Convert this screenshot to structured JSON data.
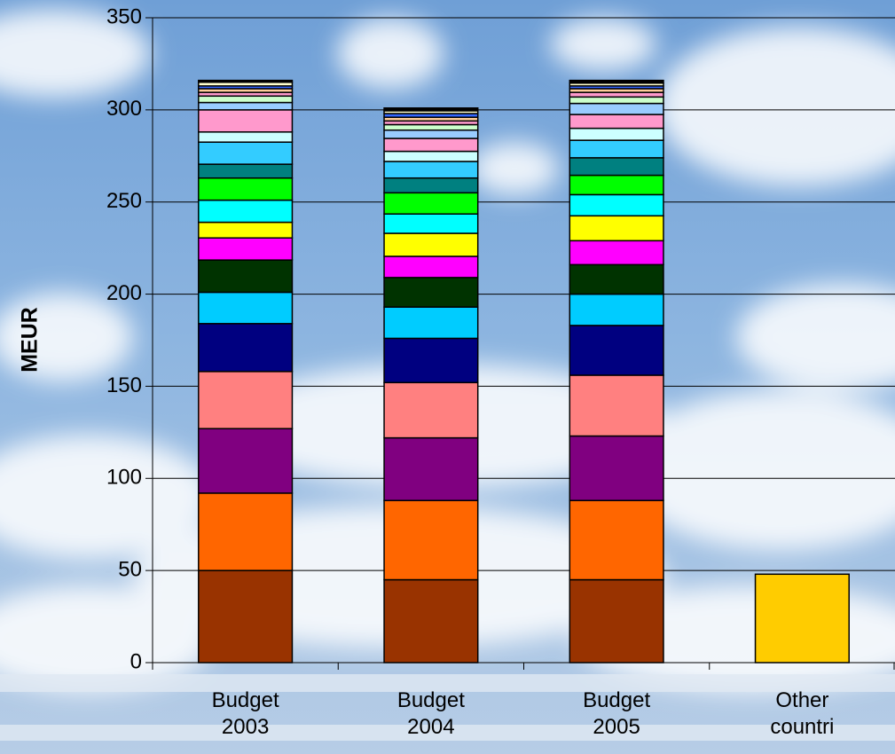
{
  "chart_data": {
    "type": "stacked_bar",
    "y_label": "MEUR",
    "categories": [
      "Budget 2003",
      "Budget 2004",
      "Budget 2005",
      "Other countri"
    ],
    "ylim": [
      0,
      350
    ],
    "yticks": [
      0,
      50,
      100,
      150,
      200,
      250,
      300,
      350
    ],
    "grid": true,
    "series": [
      {
        "color": "#993300",
        "values": [
          50,
          45,
          45,
          null
        ]
      },
      {
        "color": "#ff6600",
        "values": [
          42,
          43,
          43,
          null
        ]
      },
      {
        "color": "#800080",
        "values": [
          35,
          34,
          35,
          null
        ]
      },
      {
        "color": "#ff8080",
        "values": [
          31,
          30,
          33,
          null
        ]
      },
      {
        "color": "#000080",
        "values": [
          26,
          24,
          27,
          null
        ]
      },
      {
        "color": "#00ccff",
        "values": [
          17,
          17,
          17,
          null
        ]
      },
      {
        "color": "#003300",
        "values": [
          17.5,
          16,
          16,
          null
        ]
      },
      {
        "color": "#ff00ff",
        "values": [
          12,
          11.5,
          13,
          null
        ]
      },
      {
        "color": "#ffff00",
        "values": [
          8.5,
          12.5,
          13.5,
          null
        ]
      },
      {
        "color": "#00ffff",
        "values": [
          12,
          10.5,
          11.5,
          null
        ]
      },
      {
        "color": "#00ff00",
        "values": [
          12,
          11.5,
          10.5,
          null
        ]
      },
      {
        "color": "#008080",
        "values": [
          7.5,
          8,
          9.5,
          null
        ]
      },
      {
        "color": "#33ccff",
        "values": [
          12,
          9,
          9.5,
          null
        ]
      },
      {
        "color": "#ccffff",
        "values": [
          5.5,
          5.5,
          6.5,
          null
        ]
      },
      {
        "color": "#ff99cc",
        "values": [
          12,
          7,
          7.5,
          null
        ]
      },
      {
        "color": "#99ccff",
        "values": [
          4,
          4.5,
          6,
          null
        ]
      },
      {
        "color": "#ccffcc",
        "values": [
          3.5,
          3,
          3.5,
          null
        ]
      },
      {
        "color": "#ff99cc",
        "values": [
          2,
          2,
          2.5,
          null
        ]
      },
      {
        "color": "#ffcc99",
        "values": [
          2,
          2,
          2,
          null
        ]
      },
      {
        "color": "#3366ff",
        "values": [
          1.5,
          2,
          1.5,
          null
        ]
      },
      {
        "color": "#ffffcc",
        "values": [
          2,
          1.5,
          1.5,
          null
        ]
      },
      {
        "color": "#000000",
        "values": [
          1,
          1.5,
          1.5,
          null
        ]
      },
      {
        "color": "#ffcc00",
        "values": [
          null,
          null,
          null,
          48
        ]
      }
    ]
  }
}
